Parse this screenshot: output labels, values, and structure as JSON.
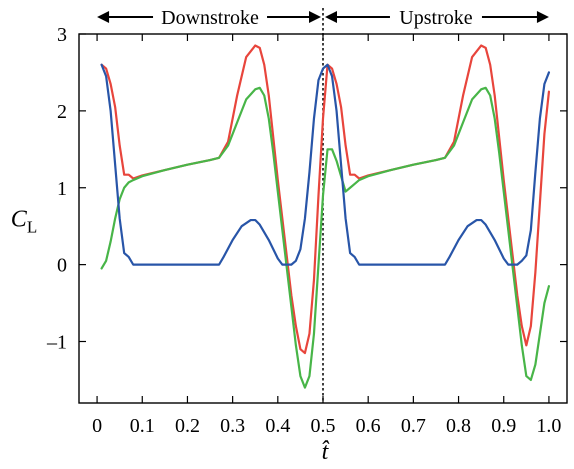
{
  "chart_data": {
    "type": "line",
    "title": "",
    "xlabel": "t̂",
    "ylabel": "C",
    "ylabel_subscript": "L",
    "xlim": [
      -0.04,
      1.04
    ],
    "ylim": [
      -1.8,
      3.0
    ],
    "xticks": [
      0,
      0.1,
      0.2,
      0.3,
      0.4,
      0.5,
      0.6,
      0.7,
      0.8,
      0.9,
      1.0
    ],
    "xtick_labels": [
      "0",
      "0.1",
      "0.2",
      "0.3",
      "0.4",
      "0.5",
      "0.6",
      "0.7",
      "0.8",
      "0.9",
      "1.0"
    ],
    "yticks": [
      -1,
      0,
      1,
      2,
      3
    ],
    "ytick_labels": [
      "–1",
      "0",
      "1",
      "2",
      "3"
    ],
    "grid": false,
    "legend": "none",
    "annotations": {
      "downstroke": "Downstroke",
      "upstroke": "Upstroke",
      "divider_x": 0.5
    },
    "series": [
      {
        "color": "#e8453c",
        "points": [
          [
            0.01,
            2.6
          ],
          [
            0.02,
            2.55
          ],
          [
            0.03,
            2.35
          ],
          [
            0.04,
            2.05
          ],
          [
            0.05,
            1.55
          ],
          [
            0.06,
            1.17
          ],
          [
            0.07,
            1.17
          ],
          [
            0.08,
            1.12
          ],
          [
            0.1,
            1.16
          ],
          [
            0.15,
            1.23
          ],
          [
            0.2,
            1.3
          ],
          [
            0.25,
            1.36
          ],
          [
            0.27,
            1.39
          ],
          [
            0.29,
            1.6
          ],
          [
            0.31,
            2.2
          ],
          [
            0.33,
            2.7
          ],
          [
            0.35,
            2.85
          ],
          [
            0.36,
            2.82
          ],
          [
            0.37,
            2.6
          ],
          [
            0.38,
            2.2
          ],
          [
            0.39,
            1.65
          ],
          [
            0.4,
            1.1
          ],
          [
            0.41,
            0.6
          ],
          [
            0.42,
            0.1
          ],
          [
            0.43,
            -0.4
          ],
          [
            0.44,
            -0.8
          ],
          [
            0.45,
            -1.1
          ],
          [
            0.46,
            -1.15
          ],
          [
            0.47,
            -0.9
          ],
          [
            0.48,
            -0.2
          ],
          [
            0.49,
            0.9
          ],
          [
            0.5,
            1.9
          ],
          [
            0.51,
            2.6
          ],
          [
            0.52,
            2.55
          ],
          [
            0.53,
            2.35
          ],
          [
            0.54,
            2.05
          ],
          [
            0.55,
            1.55
          ],
          [
            0.56,
            1.17
          ],
          [
            0.57,
            1.17
          ],
          [
            0.58,
            1.12
          ],
          [
            0.6,
            1.16
          ],
          [
            0.65,
            1.23
          ],
          [
            0.7,
            1.3
          ],
          [
            0.75,
            1.36
          ],
          [
            0.77,
            1.39
          ],
          [
            0.79,
            1.6
          ],
          [
            0.81,
            2.2
          ],
          [
            0.83,
            2.7
          ],
          [
            0.85,
            2.85
          ],
          [
            0.86,
            2.82
          ],
          [
            0.87,
            2.6
          ],
          [
            0.88,
            2.2
          ],
          [
            0.89,
            1.65
          ],
          [
            0.9,
            1.1
          ],
          [
            0.91,
            0.6
          ],
          [
            0.92,
            0.1
          ],
          [
            0.93,
            -0.4
          ],
          [
            0.94,
            -0.8
          ],
          [
            0.95,
            -1.05
          ],
          [
            0.96,
            -0.8
          ],
          [
            0.97,
            -0.1
          ],
          [
            0.98,
            0.8
          ],
          [
            0.99,
            1.7
          ],
          [
            1.0,
            2.25
          ]
        ]
      },
      {
        "color": "#48b548",
        "points": [
          [
            0.01,
            -0.05
          ],
          [
            0.02,
            0.05
          ],
          [
            0.03,
            0.3
          ],
          [
            0.04,
            0.6
          ],
          [
            0.05,
            0.85
          ],
          [
            0.06,
            1.0
          ],
          [
            0.07,
            1.07
          ],
          [
            0.08,
            1.1
          ],
          [
            0.1,
            1.15
          ],
          [
            0.15,
            1.23
          ],
          [
            0.2,
            1.3
          ],
          [
            0.25,
            1.36
          ],
          [
            0.27,
            1.39
          ],
          [
            0.29,
            1.55
          ],
          [
            0.31,
            1.85
          ],
          [
            0.33,
            2.15
          ],
          [
            0.35,
            2.28
          ],
          [
            0.36,
            2.3
          ],
          [
            0.37,
            2.2
          ],
          [
            0.38,
            1.9
          ],
          [
            0.39,
            1.45
          ],
          [
            0.4,
            0.95
          ],
          [
            0.41,
            0.45
          ],
          [
            0.42,
            -0.05
          ],
          [
            0.43,
            -0.55
          ],
          [
            0.44,
            -1.05
          ],
          [
            0.45,
            -1.45
          ],
          [
            0.46,
            -1.6
          ],
          [
            0.47,
            -1.45
          ],
          [
            0.48,
            -0.9
          ],
          [
            0.49,
            0.0
          ],
          [
            0.5,
            0.9
          ],
          [
            0.51,
            1.5
          ],
          [
            0.52,
            1.5
          ],
          [
            0.53,
            1.35
          ],
          [
            0.54,
            1.15
          ],
          [
            0.55,
            0.95
          ],
          [
            0.56,
            1.0
          ],
          [
            0.57,
            1.05
          ],
          [
            0.58,
            1.1
          ],
          [
            0.6,
            1.15
          ],
          [
            0.65,
            1.23
          ],
          [
            0.7,
            1.3
          ],
          [
            0.75,
            1.36
          ],
          [
            0.77,
            1.39
          ],
          [
            0.79,
            1.55
          ],
          [
            0.81,
            1.85
          ],
          [
            0.83,
            2.15
          ],
          [
            0.85,
            2.28
          ],
          [
            0.86,
            2.3
          ],
          [
            0.87,
            2.2
          ],
          [
            0.88,
            1.9
          ],
          [
            0.89,
            1.45
          ],
          [
            0.9,
            0.95
          ],
          [
            0.91,
            0.45
          ],
          [
            0.92,
            -0.05
          ],
          [
            0.93,
            -0.55
          ],
          [
            0.94,
            -1.05
          ],
          [
            0.95,
            -1.45
          ],
          [
            0.96,
            -1.5
          ],
          [
            0.97,
            -1.3
          ],
          [
            0.98,
            -0.9
          ],
          [
            0.99,
            -0.5
          ],
          [
            1.0,
            -0.28
          ]
        ]
      },
      {
        "color": "#2855a8",
        "points": [
          [
            0.01,
            2.6
          ],
          [
            0.02,
            2.45
          ],
          [
            0.03,
            2.0
          ],
          [
            0.04,
            1.3
          ],
          [
            0.05,
            0.6
          ],
          [
            0.06,
            0.15
          ],
          [
            0.07,
            0.1
          ],
          [
            0.08,
            0.0
          ],
          [
            0.1,
            0.0
          ],
          [
            0.15,
            0.0
          ],
          [
            0.2,
            0.0
          ],
          [
            0.25,
            0.0
          ],
          [
            0.27,
            0.0
          ],
          [
            0.28,
            0.1
          ],
          [
            0.3,
            0.32
          ],
          [
            0.32,
            0.5
          ],
          [
            0.34,
            0.58
          ],
          [
            0.35,
            0.58
          ],
          [
            0.36,
            0.52
          ],
          [
            0.38,
            0.32
          ],
          [
            0.4,
            0.08
          ],
          [
            0.41,
            0.0
          ],
          [
            0.42,
            0.0
          ],
          [
            0.43,
            0.0
          ],
          [
            0.44,
            0.05
          ],
          [
            0.45,
            0.2
          ],
          [
            0.46,
            0.6
          ],
          [
            0.47,
            1.2
          ],
          [
            0.48,
            1.9
          ],
          [
            0.49,
            2.4
          ],
          [
            0.5,
            2.55
          ],
          [
            0.51,
            2.6
          ],
          [
            0.52,
            2.45
          ],
          [
            0.53,
            2.0
          ],
          [
            0.54,
            1.3
          ],
          [
            0.55,
            0.6
          ],
          [
            0.56,
            0.15
          ],
          [
            0.57,
            0.1
          ],
          [
            0.58,
            0.0
          ],
          [
            0.6,
            0.0
          ],
          [
            0.65,
            0.0
          ],
          [
            0.7,
            0.0
          ],
          [
            0.75,
            0.0
          ],
          [
            0.77,
            0.0
          ],
          [
            0.78,
            0.1
          ],
          [
            0.8,
            0.32
          ],
          [
            0.82,
            0.5
          ],
          [
            0.84,
            0.58
          ],
          [
            0.85,
            0.58
          ],
          [
            0.86,
            0.52
          ],
          [
            0.88,
            0.32
          ],
          [
            0.9,
            0.08
          ],
          [
            0.91,
            0.0
          ],
          [
            0.92,
            0.0
          ],
          [
            0.93,
            0.0
          ],
          [
            0.94,
            0.05
          ],
          [
            0.95,
            0.12
          ],
          [
            0.96,
            0.45
          ],
          [
            0.97,
            1.2
          ],
          [
            0.98,
            1.9
          ],
          [
            0.99,
            2.35
          ],
          [
            1.0,
            2.5
          ]
        ]
      }
    ]
  }
}
